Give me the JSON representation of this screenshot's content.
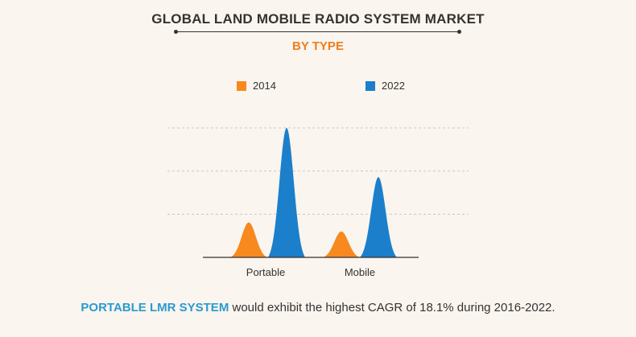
{
  "chart_data": {
    "type": "area",
    "title": "GLOBAL LAND MOBILE RADIO SYSTEM MARKET",
    "subtitle": "BY TYPE",
    "categories": [
      "Portable",
      "Mobile"
    ],
    "series": [
      {
        "name": "2014",
        "color": "#f7891f",
        "values": [
          27,
          20
        ]
      },
      {
        "name": "2022",
        "color": "#1b7fcb",
        "values": [
          100,
          62
        ]
      }
    ],
    "ylim": [
      0,
      100
    ],
    "grid": true,
    "legend_position": "top-center"
  },
  "footer": {
    "highlight": "PORTABLE LMR SYSTEM",
    "text": " would exhibit the highest CAGR of 18.1% during 2016-2022."
  }
}
